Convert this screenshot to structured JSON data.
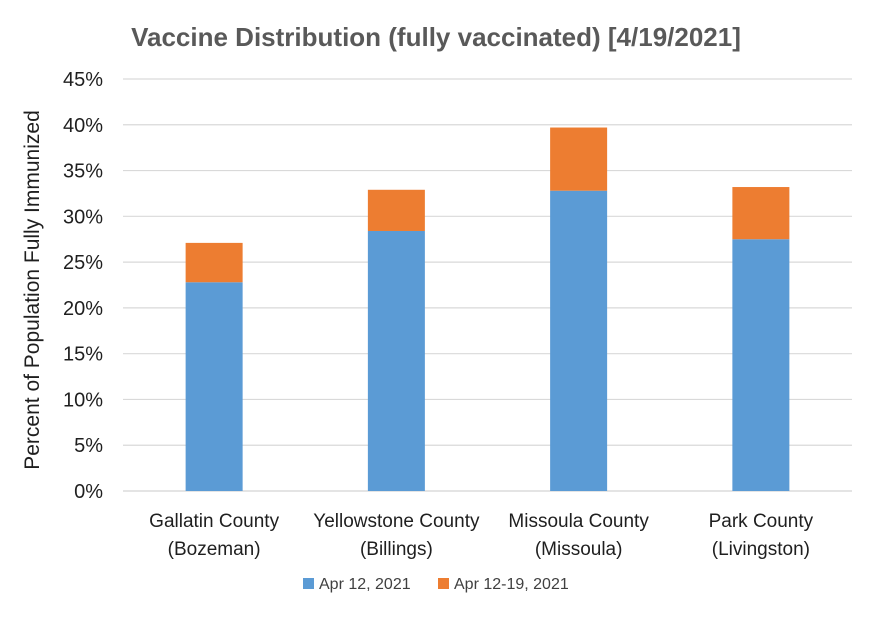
{
  "chart_data": {
    "type": "bar",
    "stacked": true,
    "title": "Vaccine Distribution (fully vaccinated) [4/19/2021]",
    "xlabel": "",
    "ylabel": "Percent of Population Fully Immunized",
    "categories": [
      [
        "Gallatin County",
        "(Bozeman)"
      ],
      [
        "Yellowstone County",
        "(Billings)"
      ],
      [
        "Missoula County",
        "(Missoula)"
      ],
      [
        "Park County",
        "(Livingston)"
      ]
    ],
    "series": [
      {
        "name": "Apr 12, 2021",
        "color": "#5b9bd5",
        "values": [
          22.8,
          28.4,
          32.8,
          27.5
        ]
      },
      {
        "name": "Apr 12-19, 2021",
        "color": "#ed7d31",
        "values": [
          4.3,
          4.5,
          6.9,
          5.7
        ]
      }
    ],
    "ylim": [
      0,
      45
    ],
    "yticks": [
      0,
      5,
      10,
      15,
      20,
      25,
      30,
      35,
      40,
      45
    ],
    "ytick_labels": [
      "0%",
      "5%",
      "10%",
      "15%",
      "20%",
      "25%",
      "30%",
      "35%",
      "40%",
      "45%"
    ],
    "grid": true,
    "legend_position": "bottom"
  }
}
